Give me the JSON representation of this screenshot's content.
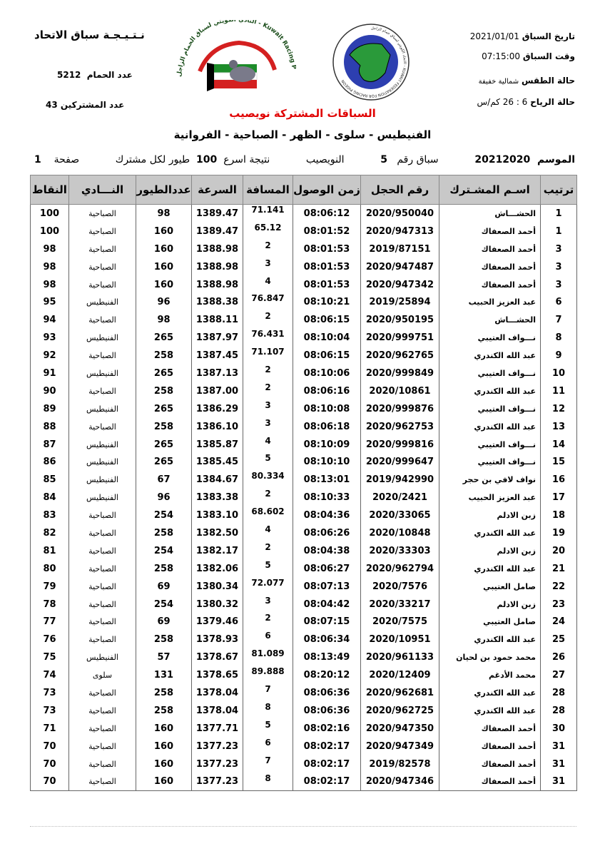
{
  "header": {
    "title": "نـتـيـجـة سباق الاتحاد",
    "pigeons_label": "عدد الحمام",
    "pigeons_value": "5212",
    "participants_label": "عدد المشتركين",
    "participants_value": "43",
    "race_date_label": "تاريخ السباق",
    "race_date": "2021/01/01",
    "race_time_label": "وقت السباق",
    "race_time": "07:15:00",
    "weather_label": "حالة الطقس",
    "weather": "شمالية خفيفة",
    "wind_label": "حالة الرياح",
    "wind": "6 : 26 كم/س",
    "subtitle": "السباقات المشتركة نويصيب",
    "clubs": "الفنيطيس - سلوى - الظهر - الصباحية - الفروانية",
    "season_label": "الموسم",
    "season": "20212020",
    "race_no_label": "سباق رقم",
    "race_no": "5",
    "location": "النويصيب",
    "result_label": "نتيجة اسرع",
    "result_count": "100",
    "per_label": "طيور لكل مشترك",
    "page_label": "صفحة",
    "page": "1",
    "logo1_text": "النادي الكويتي لسباق الحمام الزاجل - Kuwait Racing Pigeon Club",
    "logo2_text": "الاتحاد الكويتي لسباق حمام الزاجل - KUWAIT FEDERATION FOR RACING PIGEON"
  },
  "columns": [
    "ترتيب",
    "اسـم المشـترك",
    "رقم الحجل",
    "زمن الوصول",
    "المسافة",
    "السرعة",
    "عددالطيور",
    "النـــادي",
    "النقاط"
  ],
  "rows": [
    [
      "1",
      "الحشـــاش",
      "2020/950040",
      "08:06:12",
      "71.141",
      "1389.47",
      "98",
      "الصباحية",
      "100"
    ],
    [
      "1",
      "أحمد الصعفاك",
      "2020/947313",
      "08:01:52",
      "65.12",
      "1389.47",
      "160",
      "الصباحية",
      "100"
    ],
    [
      "3",
      "أحمد الصعفاك",
      "2019/87151",
      "08:01:53",
      "2",
      "1388.98",
      "160",
      "الصباحية",
      "98"
    ],
    [
      "3",
      "أحمد الصعفاك",
      "2020/947487",
      "08:01:53",
      "3",
      "1388.98",
      "160",
      "الصباحية",
      "98"
    ],
    [
      "3",
      "أحمد الصعفاك",
      "2020/947342",
      "08:01:53",
      "4",
      "1388.98",
      "160",
      "الصباحية",
      "98"
    ],
    [
      "6",
      "عبد العزيز الحبيب",
      "2019/25894",
      "08:10:21",
      "76.847",
      "1388.38",
      "96",
      "الفنيطيس",
      "95"
    ],
    [
      "7",
      "الحشـــاش",
      "2020/950195",
      "08:06:15",
      "2",
      "1388.11",
      "98",
      "الصباحية",
      "94"
    ],
    [
      "8",
      "نـــواف العتيبي",
      "2020/999751",
      "08:10:04",
      "76.431",
      "1387.97",
      "265",
      "الفنيطيس",
      "93"
    ],
    [
      "9",
      "عبد الله الكندري",
      "2020/962765",
      "08:06:15",
      "71.107",
      "1387.45",
      "258",
      "الصباحية",
      "92"
    ],
    [
      "10",
      "نـــواف العتيبي",
      "2020/999849",
      "08:10:06",
      "2",
      "1387.13",
      "265",
      "الفنيطيس",
      "91"
    ],
    [
      "11",
      "عبد الله الكندري",
      "2020/10861",
      "08:06:16",
      "2",
      "1387.00",
      "258",
      "الصباحية",
      "90"
    ],
    [
      "12",
      "نـــواف العتيبي",
      "2020/999876",
      "08:10:08",
      "3",
      "1386.29",
      "265",
      "الفنيطيس",
      "89"
    ],
    [
      "13",
      "عبد الله الكندري",
      "2020/962753",
      "08:06:18",
      "3",
      "1386.10",
      "258",
      "الصباحية",
      "88"
    ],
    [
      "14",
      "نـــواف العتيبي",
      "2020/999816",
      "08:10:09",
      "4",
      "1385.87",
      "265",
      "الفنيطيس",
      "87"
    ],
    [
      "15",
      "نـــواف العتيبي",
      "2020/999647",
      "08:10:10",
      "5",
      "1385.45",
      "265",
      "الفنيطيس",
      "86"
    ],
    [
      "16",
      "نواف لافي بن حجر",
      "2019/942990",
      "08:13:01",
      "80.334",
      "1384.67",
      "67",
      "الفنيطيس",
      "85"
    ],
    [
      "17",
      "عبد العزيز الحبيب",
      "2020/2421",
      "08:10:33",
      "2",
      "1383.38",
      "96",
      "الفنيطيس",
      "84"
    ],
    [
      "18",
      "زبن الادلم",
      "2020/33065",
      "08:04:36",
      "68.602",
      "1383.10",
      "254",
      "الصباحية",
      "83"
    ],
    [
      "19",
      "عبد الله الكندري",
      "2020/10848",
      "08:06:26",
      "4",
      "1382.50",
      "258",
      "الصباحية",
      "82"
    ],
    [
      "20",
      "زبن الادلم",
      "2020/33303",
      "08:04:38",
      "2",
      "1382.17",
      "254",
      "الصباحية",
      "81"
    ],
    [
      "21",
      "عبد الله الكندري",
      "2020/962794",
      "08:06:27",
      "5",
      "1382.06",
      "258",
      "الصباحية",
      "80"
    ],
    [
      "22",
      "صامل العتيبي",
      "2020/7576",
      "08:07:13",
      "72.077",
      "1380.34",
      "69",
      "الصباحية",
      "79"
    ],
    [
      "23",
      "زبن الادلم",
      "2020/33217",
      "08:04:42",
      "3",
      "1380.32",
      "254",
      "الصباحية",
      "78"
    ],
    [
      "24",
      "صامل العتيبي",
      "2020/7575",
      "08:07:15",
      "2",
      "1379.46",
      "69",
      "الصباحية",
      "77"
    ],
    [
      "25",
      "عبد الله الكندري",
      "2020/10951",
      "08:06:34",
      "6",
      "1378.93",
      "258",
      "الصباحية",
      "76"
    ],
    [
      "26",
      "محمد حمود بن لحيان",
      "2020/961133",
      "08:13:49",
      "81.089",
      "1378.67",
      "57",
      "الفنيطيس",
      "75"
    ],
    [
      "27",
      "محمد الأدغم",
      "2020/12409",
      "08:20:12",
      "89.888",
      "1378.65",
      "131",
      "سلوى",
      "74"
    ],
    [
      "28",
      "عبد الله الكندري",
      "2020/962681",
      "08:06:36",
      "7",
      "1378.04",
      "258",
      "الصباحية",
      "73"
    ],
    [
      "28",
      "عبد الله الكندري",
      "2020/962725",
      "08:06:36",
      "8",
      "1378.04",
      "258",
      "الصباحية",
      "73"
    ],
    [
      "30",
      "أحمد الصعفاك",
      "2020/947350",
      "08:02:16",
      "5",
      "1377.71",
      "160",
      "الصباحية",
      "71"
    ],
    [
      "31",
      "أحمد الصعفاك",
      "2020/947349",
      "08:02:17",
      "6",
      "1377.23",
      "160",
      "الصباحية",
      "70"
    ],
    [
      "31",
      "أحمد الصعفاك",
      "2019/82578",
      "08:02:17",
      "7",
      "1377.23",
      "160",
      "الصباحية",
      "70"
    ],
    [
      "31",
      "أحمد الصعفاك",
      "2020/947346",
      "08:02:17",
      "8",
      "1377.23",
      "160",
      "الصباحية",
      "70"
    ]
  ],
  "colors": {
    "subtitle": "#e00000",
    "header_bg": "#c8c8c8"
  }
}
